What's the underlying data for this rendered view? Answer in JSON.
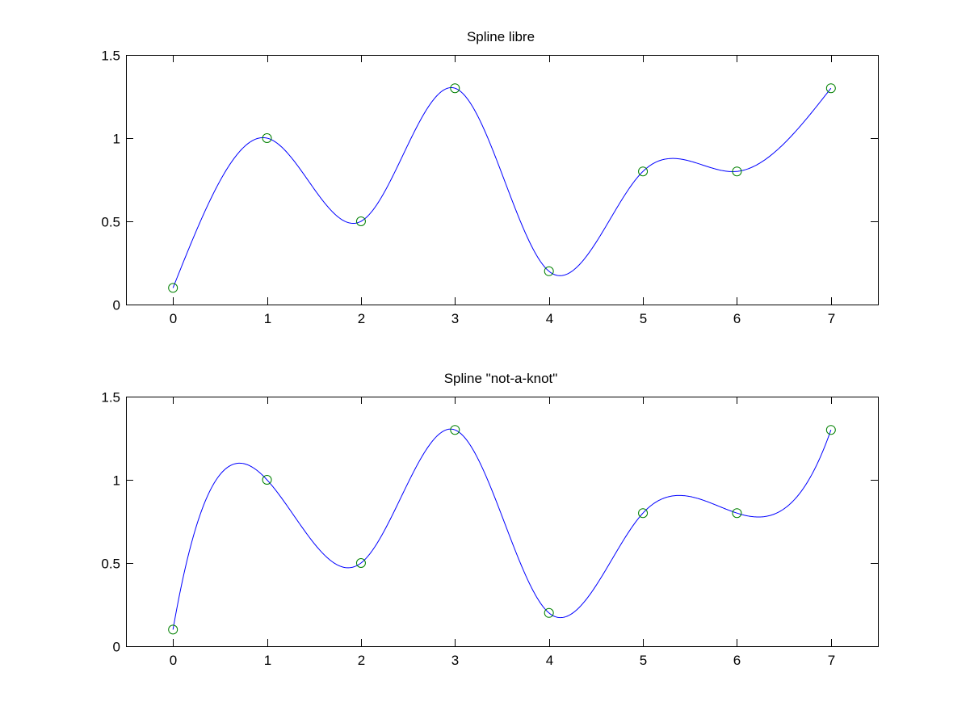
{
  "chart_data": [
    {
      "type": "line",
      "title": "Spline libre",
      "xlim": [
        -0.5,
        7.5
      ],
      "ylim": [
        0,
        1.5
      ],
      "xticks": [
        "0",
        "1",
        "2",
        "3",
        "4",
        "5",
        "6",
        "7"
      ],
      "yticks": [
        "0",
        "0.5",
        "1",
        "1.5"
      ],
      "grid": false,
      "spline": "natural",
      "x": [
        0,
        1,
        2,
        3,
        4,
        5,
        6,
        7
      ],
      "y": [
        0.1,
        1.0,
        0.5,
        1.3,
        0.2,
        0.8,
        0.8,
        1.3
      ],
      "line_color": "#0000ff",
      "marker_color": "#008000"
    },
    {
      "type": "line",
      "title": "Spline \"not-a-knot\"",
      "xlim": [
        -0.5,
        7.5
      ],
      "ylim": [
        0,
        1.5
      ],
      "xticks": [
        "0",
        "1",
        "2",
        "3",
        "4",
        "5",
        "6",
        "7"
      ],
      "yticks": [
        "0",
        "0.5",
        "1",
        "1.5"
      ],
      "grid": false,
      "spline": "not-a-knot",
      "x": [
        0,
        1,
        2,
        3,
        4,
        5,
        6,
        7
      ],
      "y": [
        0.1,
        1.0,
        0.5,
        1.3,
        0.2,
        0.8,
        0.8,
        1.3
      ],
      "line_color": "#0000ff",
      "marker_color": "#008000"
    }
  ]
}
